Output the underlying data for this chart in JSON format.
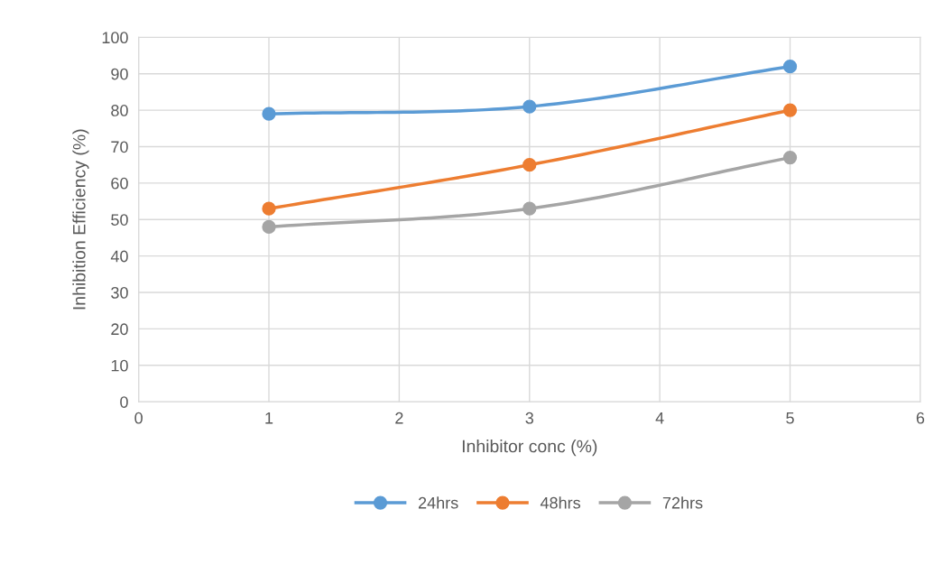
{
  "chart_data": {
    "type": "line",
    "xlabel": "Inhibitor conc (%)",
    "ylabel": "Inhibition Efficiency (%)",
    "x": [
      1,
      3,
      5
    ],
    "series": [
      {
        "name": "24hrs",
        "color": "#5b9bd5",
        "values": [
          79,
          81,
          92
        ]
      },
      {
        "name": "48hrs",
        "color": "#ed7d31",
        "values": [
          53,
          65,
          80
        ]
      },
      {
        "name": "72hrs",
        "color": "#a5a5a5",
        "values": [
          48,
          53,
          67
        ]
      }
    ],
    "xlim": [
      0,
      6
    ],
    "xticks": [
      0,
      1,
      2,
      3,
      4,
      5,
      6
    ],
    "ylim": [
      0,
      100
    ],
    "yticks": [
      0,
      10,
      20,
      30,
      40,
      50,
      60,
      70,
      80,
      90,
      100
    ],
    "grid": true,
    "legend": "bottom",
    "marker": "circle",
    "line_style": "solid"
  }
}
